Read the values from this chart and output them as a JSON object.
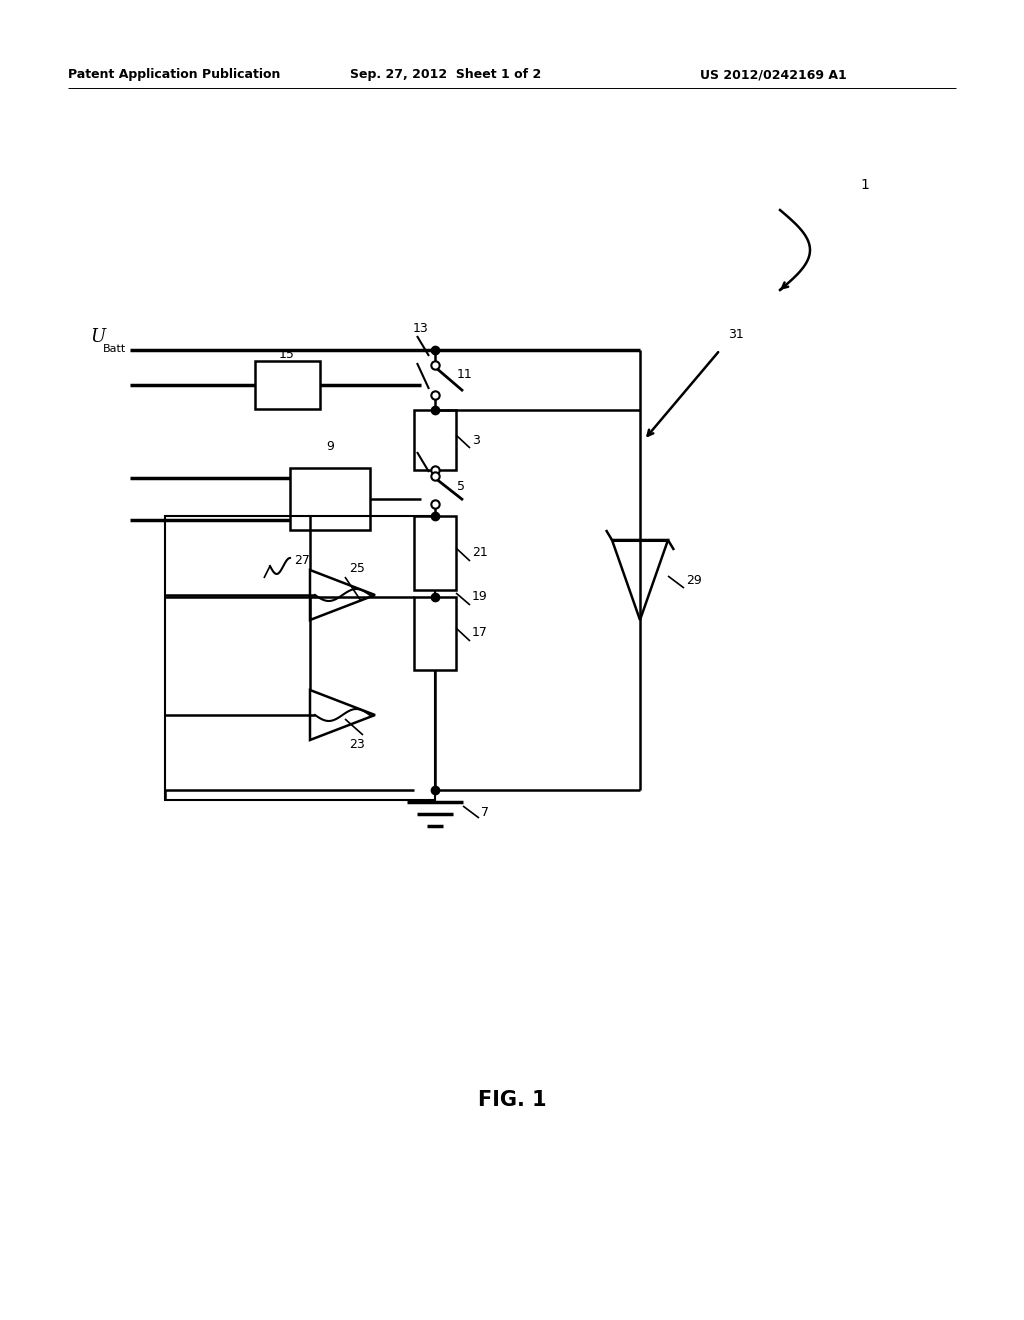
{
  "background_color": "#ffffff",
  "line_color": "#000000",
  "header_left": "Patent Application Publication",
  "header_center": "Sep. 27, 2012  Sheet 1 of 2",
  "header_right": "US 2012/0242169 A1",
  "figure_label": "FIG. 1"
}
